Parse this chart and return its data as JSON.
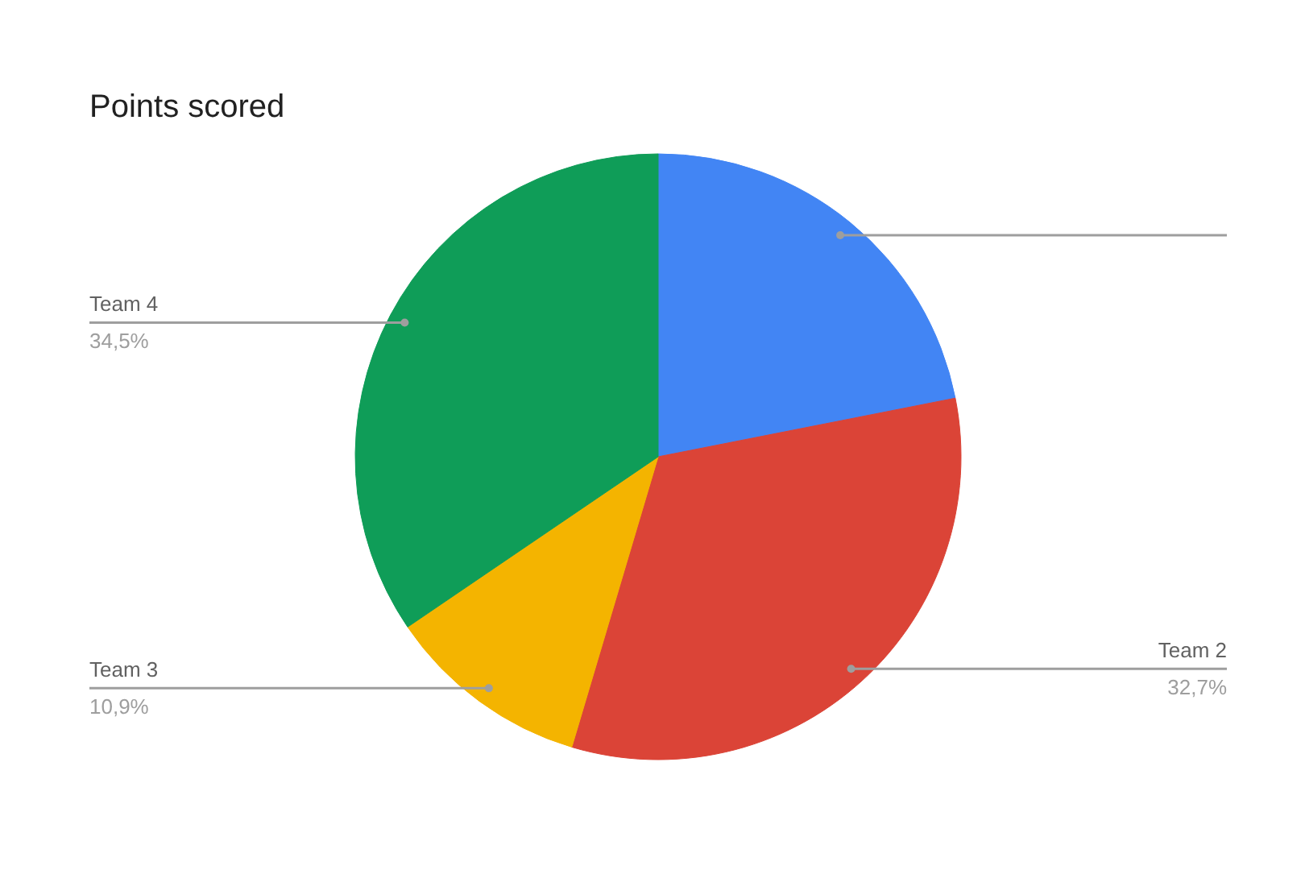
{
  "chart_data": {
    "type": "pie",
    "title": "Points scored",
    "categories": [
      null,
      "Team 2",
      "Team 3",
      "Team 4"
    ],
    "values": [
      21.9,
      32.7,
      10.9,
      34.5
    ],
    "colors": [
      "#4285f4",
      "#db4437",
      "#f4b400",
      "#0f9d58"
    ],
    "value_labels": [
      null,
      "32,7%",
      "10,9%",
      "34,5%"
    ]
  }
}
